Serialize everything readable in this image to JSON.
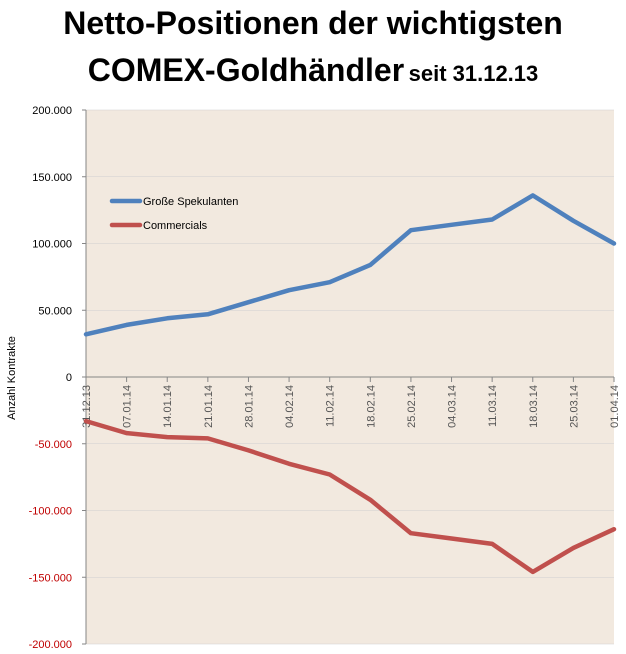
{
  "title": {
    "line1": "Netto-Positionen der wichtigsten",
    "line2_main": "COMEX-Goldhändler",
    "line2_sub": "seit 31.12.13"
  },
  "colors": {
    "plot_bg": "#f2e9df",
    "series1": "#4f81bd",
    "series2": "#c0504d",
    "axis": "#868686",
    "neg_label": "#c00000"
  },
  "chart_data": {
    "type": "line",
    "title": "Netto-Positionen der wichtigsten COMEX-Goldhändler seit 31.12.13",
    "xlabel": "",
    "ylabel": "Anzahl Kontrakte",
    "ylim": [
      -200000,
      200000
    ],
    "yticks": [
      200000,
      150000,
      100000,
      50000,
      0,
      -50000,
      -100000,
      -150000,
      -200000
    ],
    "ytick_labels": [
      "200.000",
      "150.000",
      "100.000",
      "50.000",
      "0",
      "-50.000",
      "-100.000",
      "-150.000",
      "-200.000"
    ],
    "categories": [
      "31.12.13",
      "07.01.14",
      "14.01.14",
      "21.01.14",
      "28.01.14",
      "04.02.14",
      "11.02.14",
      "18.02.14",
      "25.02.14",
      "04.03.14",
      "11.03.14",
      "18.03.14",
      "25.03.14",
      "01.04.14"
    ],
    "legend_position": "upper-left",
    "series": [
      {
        "name": "Große Spekulanten",
        "color": "#4f81bd",
        "values": [
          32000,
          39000,
          44000,
          47000,
          56000,
          65000,
          71000,
          84000,
          110000,
          114000,
          118000,
          136000,
          117000,
          100000
        ]
      },
      {
        "name": "Commercials",
        "color": "#c0504d",
        "values": [
          -33000,
          -42000,
          -45000,
          -46000,
          -55000,
          -65000,
          -73000,
          -92000,
          -117000,
          -121000,
          -125000,
          -146000,
          -128000,
          -114000
        ]
      }
    ]
  }
}
